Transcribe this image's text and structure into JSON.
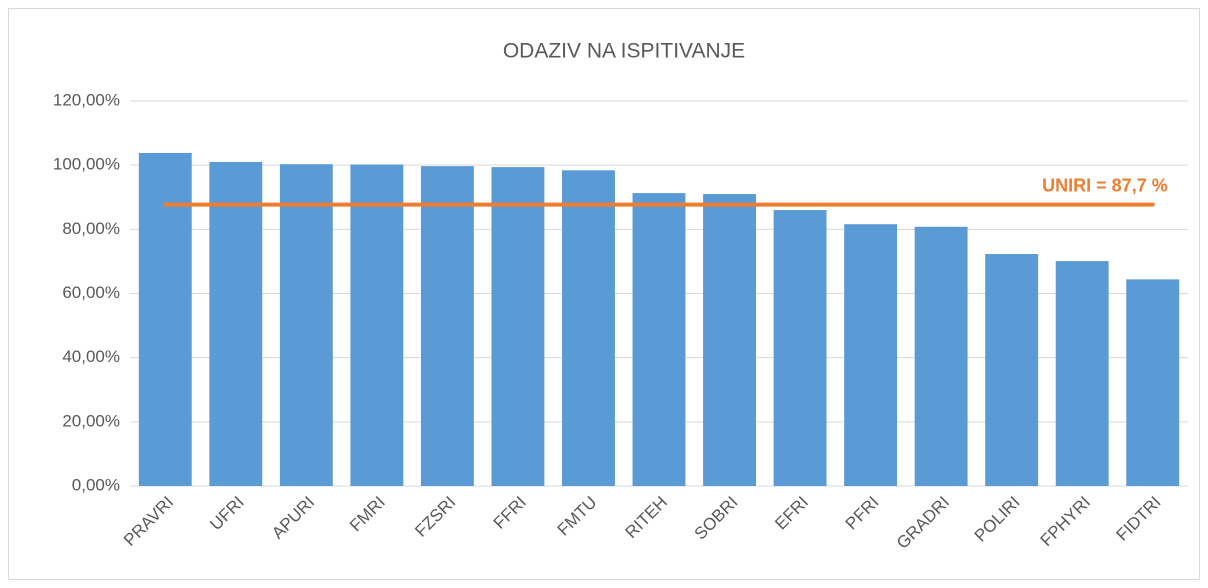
{
  "chart_data": {
    "type": "bar",
    "title": "ODAZIV NA ISPITIVANJE",
    "categories": [
      "PRAVRI",
      "UFRI",
      "APURI",
      "FMRI",
      "FZSRI",
      "FFRI",
      "FMTU",
      "RITEH",
      "SOBRI",
      "EFRI",
      "PFRI",
      "GRADRI",
      "POLIRI",
      "FPHYRI",
      "FIDTRI"
    ],
    "values": [
      103.8,
      101.0,
      100.3,
      100.2,
      99.7,
      99.4,
      98.4,
      91.3,
      91.0,
      86.0,
      81.6,
      80.8,
      72.3,
      70.1,
      64.4
    ],
    "color": "#5b9bd5",
    "ylim": [
      0,
      120
    ],
    "yticks": [
      {
        "value": 0,
        "label": "0,00%"
      },
      {
        "value": 20,
        "label": "20,00%"
      },
      {
        "value": 40,
        "label": "40,00%"
      },
      {
        "value": 60,
        "label": "60,00%"
      },
      {
        "value": 80,
        "label": "80,00%"
      },
      {
        "value": 100,
        "label": "100,00%"
      },
      {
        "value": 120,
        "label": "120,00%"
      }
    ],
    "grid": true,
    "reference_line": {
      "value": 87.7,
      "label": "UNIRI = 87,7 %",
      "color": "#ed7d31"
    }
  }
}
